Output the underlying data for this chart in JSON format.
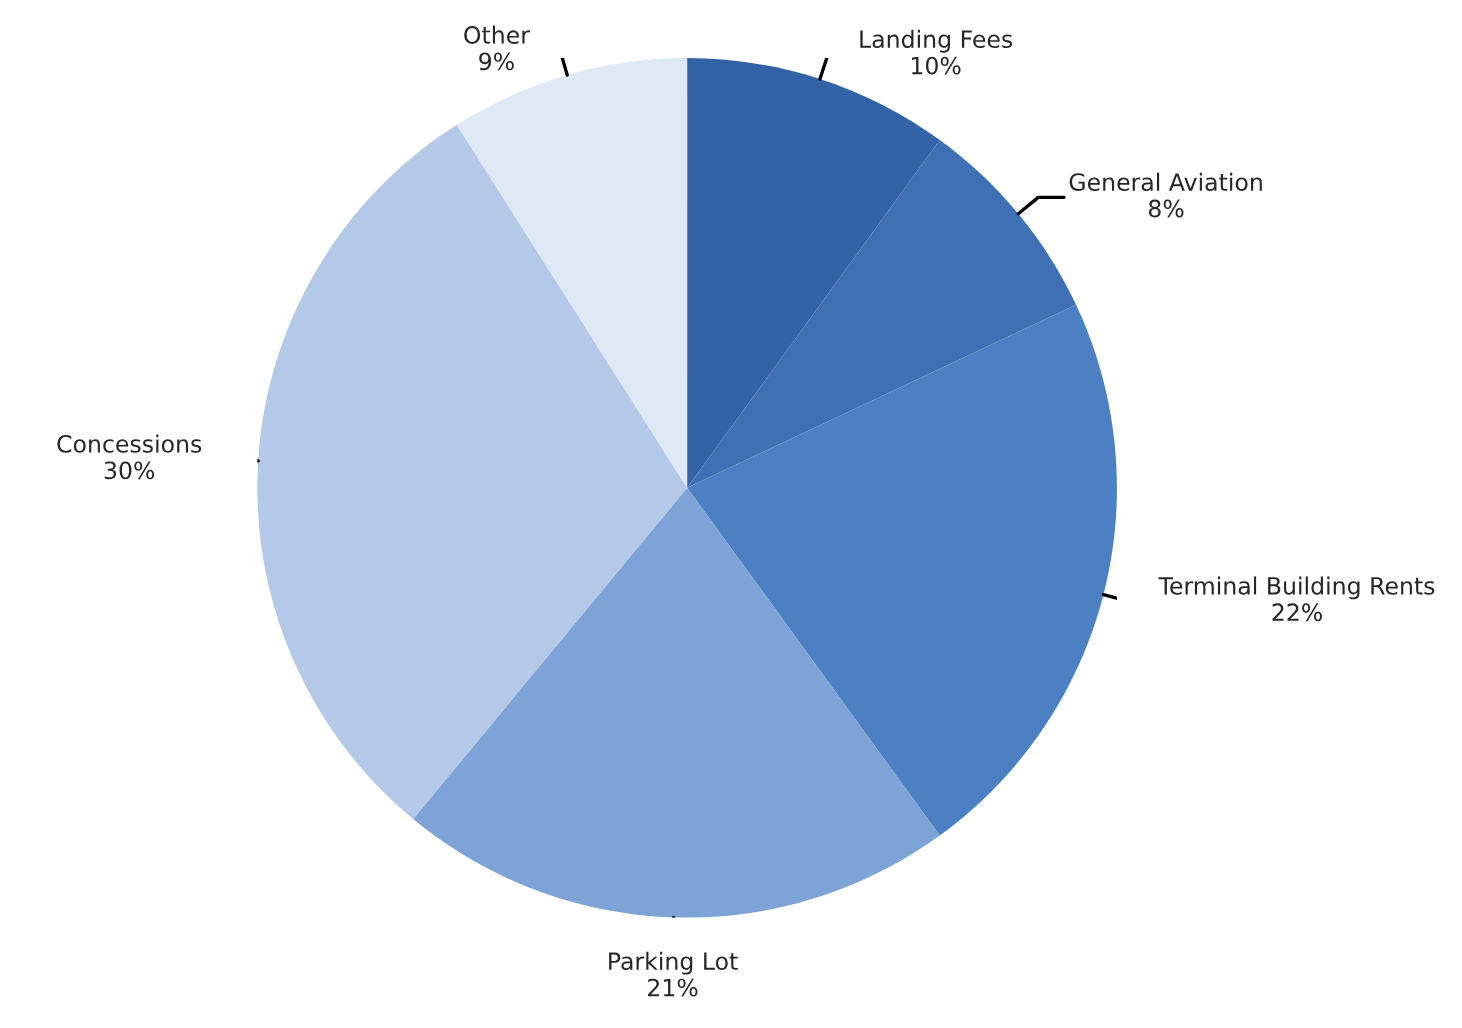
{
  "chart_data": {
    "type": "pie",
    "categories": [
      "Landing Fees",
      "General Aviation",
      "Terminal Building Rents",
      "Parking Lot",
      "Concessions",
      "Other"
    ],
    "values": [
      10,
      8,
      22,
      21,
      30,
      9
    ],
    "colors": [
      "#3363a6",
      "#3f70b3",
      "#4d80c2",
      "#7ea3d6",
      "#b4c8e8",
      "#dfe8f5"
    ],
    "value_labels": [
      "10%",
      "8%",
      "22%",
      "21%",
      "30%",
      "9%"
    ],
    "legend": false
  }
}
